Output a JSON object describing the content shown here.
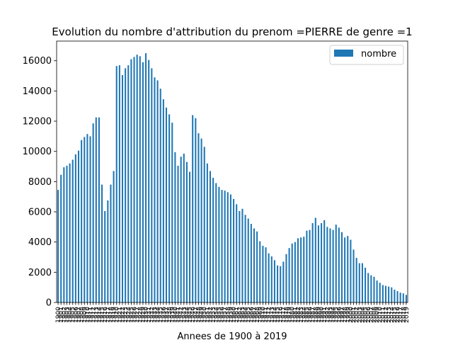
{
  "chart_data": {
    "type": "bar",
    "title": "Evolution du nombre d'attribution du prenom =PIERRE de genre =1",
    "xlabel": "Annees de 1900 à 2019",
    "ylabel": "",
    "ylim": [
      0,
      17300
    ],
    "yticks": [
      0,
      2000,
      4000,
      6000,
      8000,
      10000,
      12000,
      14000,
      16000
    ],
    "legend": {
      "position": "top-right",
      "entries": [
        "nombre"
      ]
    },
    "grid": false,
    "bar_color": "#1f77b4",
    "categories": [
      "1900",
      "1901",
      "1902",
      "1903",
      "1904",
      "1905",
      "1906",
      "1907",
      "1908",
      "1909",
      "1910",
      "1911",
      "1912",
      "1913",
      "1914",
      "1915",
      "1916",
      "1917",
      "1918",
      "1919",
      "1920",
      "1921",
      "1922",
      "1923",
      "1924",
      "1925",
      "1926",
      "1927",
      "1928",
      "1929",
      "1930",
      "1931",
      "1932",
      "1933",
      "1934",
      "1935",
      "1936",
      "1937",
      "1938",
      "1939",
      "1940",
      "1941",
      "1942",
      "1943",
      "1944",
      "1945",
      "1946",
      "1947",
      "1948",
      "1949",
      "1950",
      "1951",
      "1952",
      "1953",
      "1954",
      "1955",
      "1956",
      "1957",
      "1958",
      "1959",
      "1960",
      "1961",
      "1962",
      "1963",
      "1964",
      "1965",
      "1966",
      "1967",
      "1968",
      "1969",
      "1970",
      "1971",
      "1972",
      "1973",
      "1974",
      "1975",
      "1976",
      "1977",
      "1978",
      "1979",
      "1980",
      "1981",
      "1982",
      "1983",
      "1984",
      "1985",
      "1986",
      "1987",
      "1988",
      "1989",
      "1990",
      "1991",
      "1992",
      "1993",
      "1994",
      "1995",
      "1996",
      "1997",
      "1998",
      "1999",
      "2000",
      "2001",
      "2002",
      "2003",
      "2004",
      "2005",
      "2006",
      "2007",
      "2008",
      "2009",
      "2010",
      "2011",
      "2012",
      "2013",
      "2014",
      "2015",
      "2016",
      "2017",
      "2018",
      "2019"
    ],
    "series": [
      {
        "name": "nombre",
        "values": [
          7450,
          8450,
          8950,
          9050,
          9200,
          9450,
          9800,
          10050,
          10750,
          10950,
          11150,
          11000,
          11850,
          12250,
          12250,
          7800,
          6050,
          6750,
          7800,
          8700,
          15650,
          15700,
          15050,
          15500,
          15700,
          16100,
          16250,
          16400,
          16300,
          15900,
          16500,
          16050,
          15500,
          14900,
          14700,
          14150,
          13450,
          12900,
          12450,
          11900,
          9950,
          9050,
          9650,
          9850,
          9300,
          8650,
          12400,
          12200,
          11200,
          10850,
          10300,
          9200,
          8700,
          8250,
          7900,
          7650,
          7450,
          7400,
          7300,
          7150,
          6850,
          6500,
          6050,
          6200,
          5800,
          5550,
          5200,
          4900,
          4700,
          4050,
          3750,
          3650,
          3250,
          3050,
          2800,
          2450,
          2400,
          2700,
          3200,
          3600,
          3900,
          4000,
          4250,
          4300,
          4350,
          4750,
          4800,
          5250,
          5600,
          5100,
          5250,
          5450,
          5000,
          4900,
          4800,
          5150,
          4950,
          4650,
          4300,
          4400,
          4150,
          3500,
          2950,
          2600,
          2600,
          2300,
          1950,
          1800,
          1700,
          1450,
          1300,
          1150,
          1100,
          1050,
          1000,
          850,
          750,
          650,
          600,
          500
        ]
      }
    ]
  }
}
